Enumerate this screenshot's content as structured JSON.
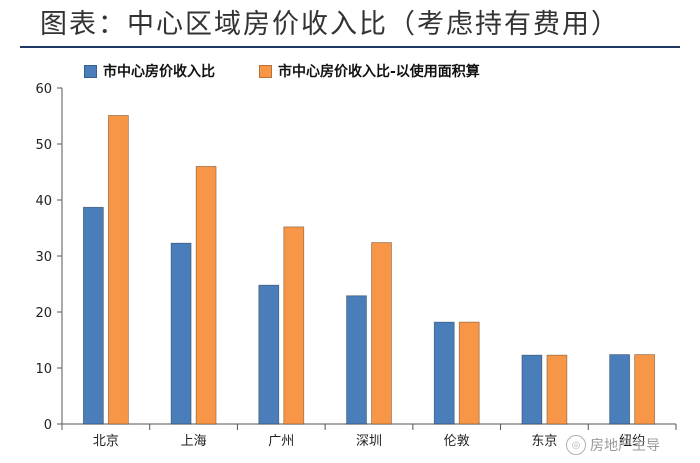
{
  "title": "图表：中心区域房价收入比（考虑持有费用）",
  "watermark": "房地产主导",
  "colors": {
    "series1": "#4a7ebb",
    "series2": "#f79646",
    "title_rule": "#1f3864"
  },
  "chart_data": {
    "type": "bar",
    "title": "图表：中心区域房价收入比（考虑持有费用）",
    "xlabel": "",
    "ylabel": "",
    "ylim": [
      0,
      60
    ],
    "yticks": [
      0,
      10,
      20,
      30,
      40,
      50,
      60
    ],
    "grid": false,
    "legend_position": "top",
    "categories": [
      "北京",
      "上海",
      "广州",
      "深圳",
      "伦敦",
      "东京",
      "纽约"
    ],
    "series": [
      {
        "name": "市中心房价收入比",
        "values": [
          38.7,
          32.3,
          24.8,
          22.9,
          18.2,
          12.3,
          12.4
        ]
      },
      {
        "name": "市中心房价收入比-以使用面积算",
        "values": [
          55.1,
          46.0,
          35.2,
          32.4,
          18.2,
          12.3,
          12.4
        ]
      }
    ]
  }
}
